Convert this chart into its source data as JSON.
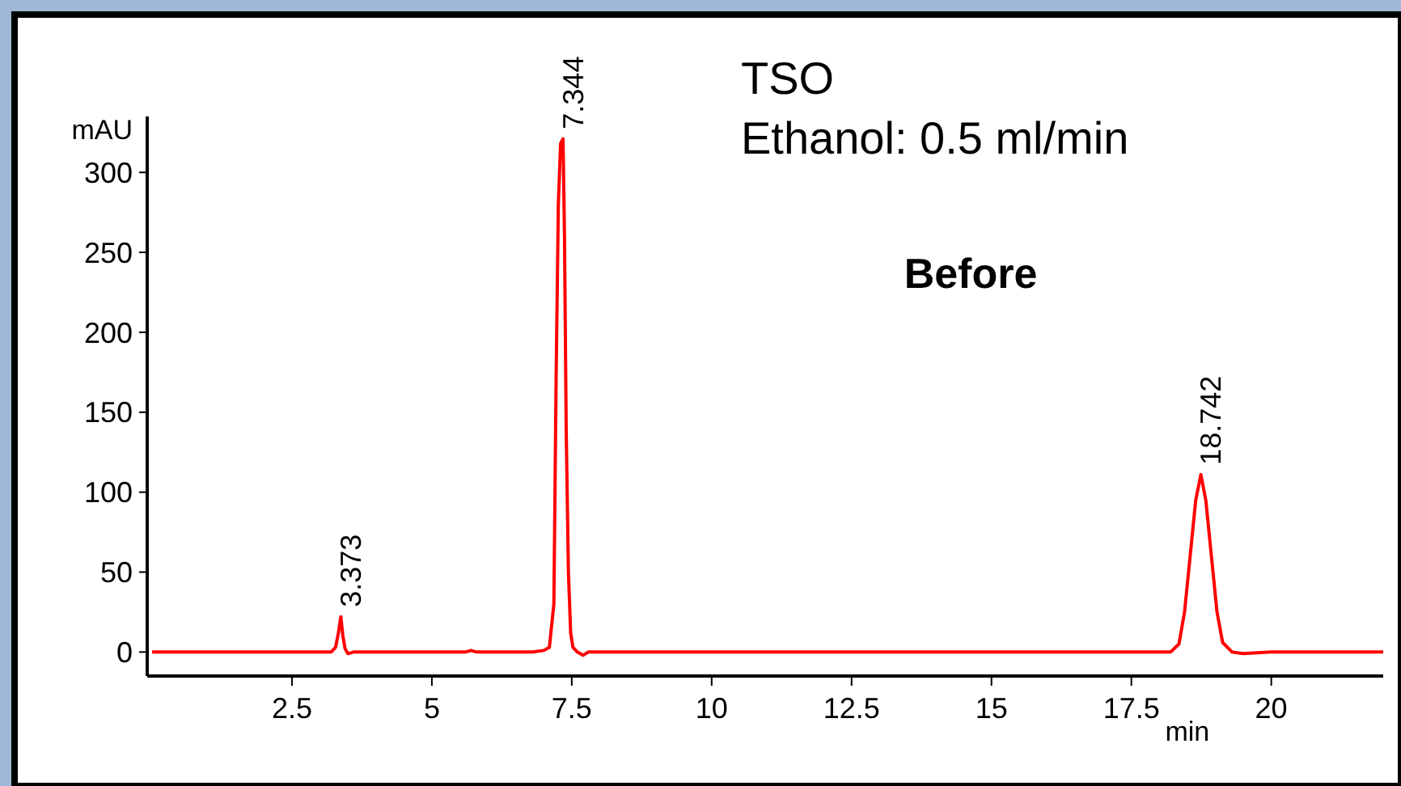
{
  "chart_data": {
    "type": "line",
    "title": "TSO",
    "subtitle": "Ethanol: 0.5 ml/min",
    "xlabel": "min",
    "ylabel": "mAU",
    "x": [
      0,
      0.5,
      1.0,
      1.5,
      2.0,
      2.5,
      3.0,
      3.2,
      3.28,
      3.33,
      3.373,
      3.41,
      3.45,
      3.5,
      3.6,
      4.0,
      5.0,
      5.6,
      5.7,
      5.8,
      6.0,
      6.8,
      7.0,
      7.1,
      7.18,
      7.22,
      7.26,
      7.3,
      7.344,
      7.37,
      7.4,
      7.44,
      7.48,
      7.52,
      7.6,
      7.7,
      7.8,
      8.0,
      9.0,
      10.0,
      12.0,
      14.0,
      16.0,
      18.0,
      18.2,
      18.35,
      18.45,
      18.55,
      18.65,
      18.742,
      18.83,
      18.93,
      19.03,
      19.13,
      19.3,
      19.5,
      20.0,
      21.0,
      22.0
    ],
    "series": [
      {
        "color": "#ff0000",
        "values": [
          0,
          0,
          0,
          0,
          0,
          0,
          0,
          0,
          3,
          12,
          22,
          10,
          2,
          -1,
          0,
          0,
          0,
          0,
          1,
          0,
          0,
          0,
          1,
          3,
          30,
          170,
          280,
          318,
          321,
          260,
          140,
          50,
          12,
          3,
          0,
          -2,
          0,
          0,
          0,
          0,
          0,
          0,
          0,
          0,
          0,
          5,
          25,
          60,
          95,
          111,
          95,
          60,
          25,
          6,
          0,
          -1,
          0,
          0,
          0
        ]
      }
    ],
    "annotations": [
      {
        "text": "3.373",
        "x": 3.373,
        "y": 22
      },
      {
        "text": "7.344",
        "x": 7.344,
        "y": 321
      },
      {
        "text": "18.742",
        "x": 18.742,
        "y": 111
      },
      "Before"
    ],
    "xlim": [
      0,
      22
    ],
    "xticks": [
      2.5,
      5,
      7.5,
      10,
      12.5,
      15,
      17.5,
      20
    ],
    "ylim": [
      -15,
      335
    ],
    "yticks": [
      0,
      50,
      100,
      150,
      200,
      250,
      300
    ],
    "grid": false,
    "marker": "none",
    "line_style": "solid"
  }
}
